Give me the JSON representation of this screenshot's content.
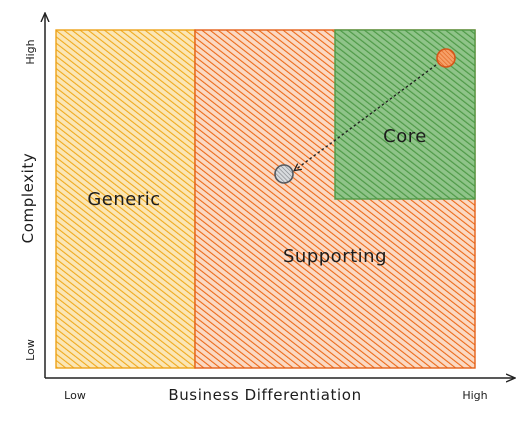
{
  "diagram": {
    "regions": {
      "generic": {
        "label": "Generic",
        "color": "#f3b52e"
      },
      "supporting": {
        "label": "Supporting",
        "color": "#ef7022"
      },
      "core": {
        "label": "Core",
        "color": "#5fa855"
      }
    },
    "axes": {
      "x_title": "Business Differentiation",
      "y_title": "Complexity",
      "x_low": "Low",
      "x_high": "High",
      "y_low": "Low",
      "y_high": "High"
    },
    "markers": {
      "origin_color": "#ef7022",
      "target_color": "#9aa0a6"
    }
  }
}
